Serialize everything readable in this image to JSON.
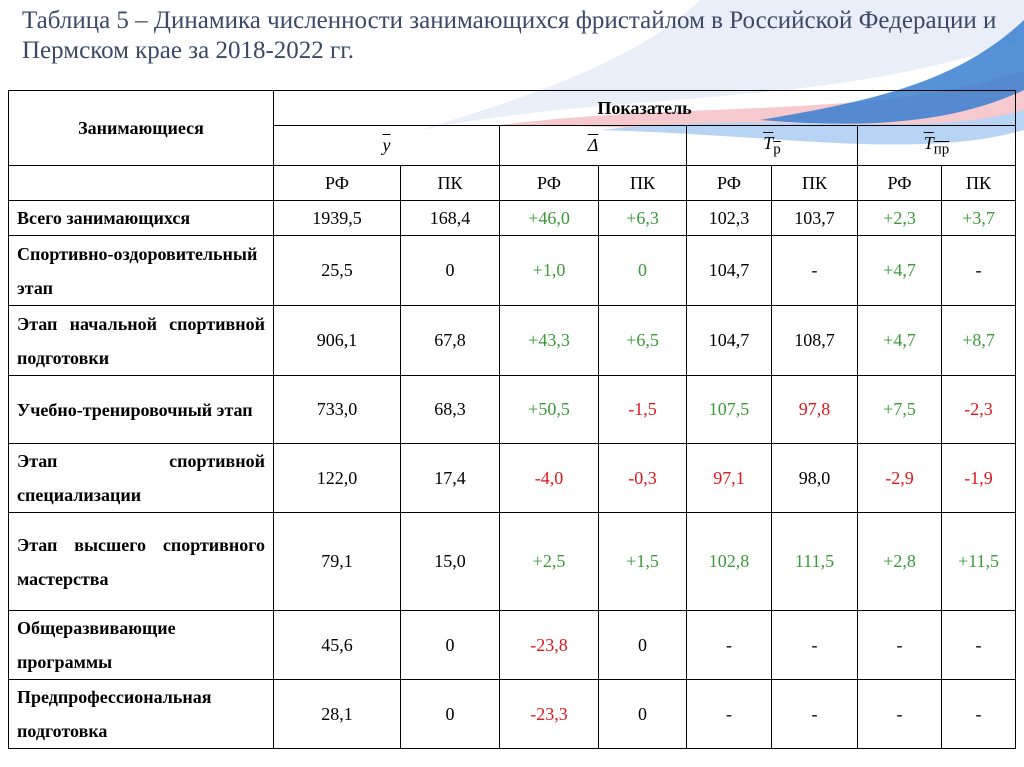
{
  "header": {
    "title": "Таблица 5 – Динамика численности занимающихся фристайлом в Российской Федерации и Пермском крае за 2018-2022 гг."
  },
  "table": {
    "corner": "Занимающиеся",
    "group_header": "Показатель",
    "indicators": [
      {
        "symbol": "y"
      },
      {
        "symbol": "Δ"
      },
      {
        "symbol": "T",
        "subscript": "р"
      },
      {
        "symbol": "T",
        "subscript": "пр"
      }
    ],
    "subheaders": [
      "РФ",
      "ПК",
      "РФ",
      "ПК",
      "РФ",
      "ПК",
      "РФ",
      "ПК"
    ],
    "rows": [
      {
        "label": "Всего занимающихся",
        "cells": [
          "1939,5",
          "168,4",
          "+46,0",
          "+6,3",
          "102,3",
          "103,7",
          "+2,3",
          "+3,7"
        ],
        "colors": [
          "#000000",
          "#000000",
          "#3a9a3a",
          "#3a9a3a",
          "#000000",
          "#000000",
          "#3a9a3a",
          "#3a9a3a"
        ]
      },
      {
        "label": "Спортивно-оздоровительный этап",
        "cells": [
          "25,5",
          "0",
          "+1,0",
          "0",
          "104,7",
          "-",
          "+4,7",
          "-"
        ],
        "colors": [
          "#000000",
          "#000000",
          "#3a9a3a",
          "#3a9a3a",
          "#000000",
          "#000000",
          "#3a9a3a",
          "#000000"
        ]
      },
      {
        "label": "Этап начальной спортивной подготовки",
        "cells": [
          "906,1",
          "67,8",
          "+43,3",
          "+6,5",
          "104,7",
          "108,7",
          "+4,7",
          "+8,7"
        ],
        "colors": [
          "#000000",
          "#000000",
          "#3a9a3a",
          "#3a9a3a",
          "#000000",
          "#000000",
          "#3a9a3a",
          "#3a9a3a"
        ]
      },
      {
        "label": "Учебно-тренировочный этап",
        "cells": [
          "733,0",
          "68,3",
          "+50,5",
          "-1,5",
          "107,5",
          "97,8",
          "+7,5",
          "-2,3"
        ],
        "colors": [
          "#000000",
          "#000000",
          "#3a9a3a",
          "#e0161c",
          "#3a9a3a",
          "#e0161c",
          "#3a9a3a",
          "#e0161c"
        ]
      },
      {
        "label": "Этап спортивной специализации",
        "cells": [
          "122,0",
          "17,4",
          "-4,0",
          "-0,3",
          "97,1",
          "98,0",
          "-2,9",
          "-1,9"
        ],
        "colors": [
          "#000000",
          "#000000",
          "#e0161c",
          "#e0161c",
          "#e0161c",
          "#000000",
          "#e0161c",
          "#e0161c"
        ]
      },
      {
        "label": "Этап высшего спортивного мастерства",
        "cells": [
          "79,1",
          "15,0",
          "+2,5",
          "+1,5",
          "102,8",
          "111,5",
          "+2,8",
          "+11,5"
        ],
        "colors": [
          "#000000",
          "#000000",
          "#3a9a3a",
          "#3a9a3a",
          "#3a9a3a",
          "#3a9a3a",
          "#3a9a3a",
          "#3a9a3a"
        ]
      },
      {
        "label": "Общеразвивающие программы",
        "cells": [
          "45,6",
          "0",
          "-23,8",
          "0",
          "-",
          "-",
          "-",
          "-"
        ],
        "colors": [
          "#000000",
          "#000000",
          "#e0161c",
          "#000000",
          "#000000",
          "#000000",
          "#000000",
          "#000000"
        ]
      },
      {
        "label": "Предпрофессиональная подготовка",
        "cells": [
          "28,1",
          "0",
          "-23,3",
          "0",
          "-",
          "-",
          "-",
          "-"
        ],
        "colors": [
          "#000000",
          "#000000",
          "#e0161c",
          "#000000",
          "#000000",
          "#000000",
          "#000000",
          "#000000"
        ]
      }
    ]
  }
}
